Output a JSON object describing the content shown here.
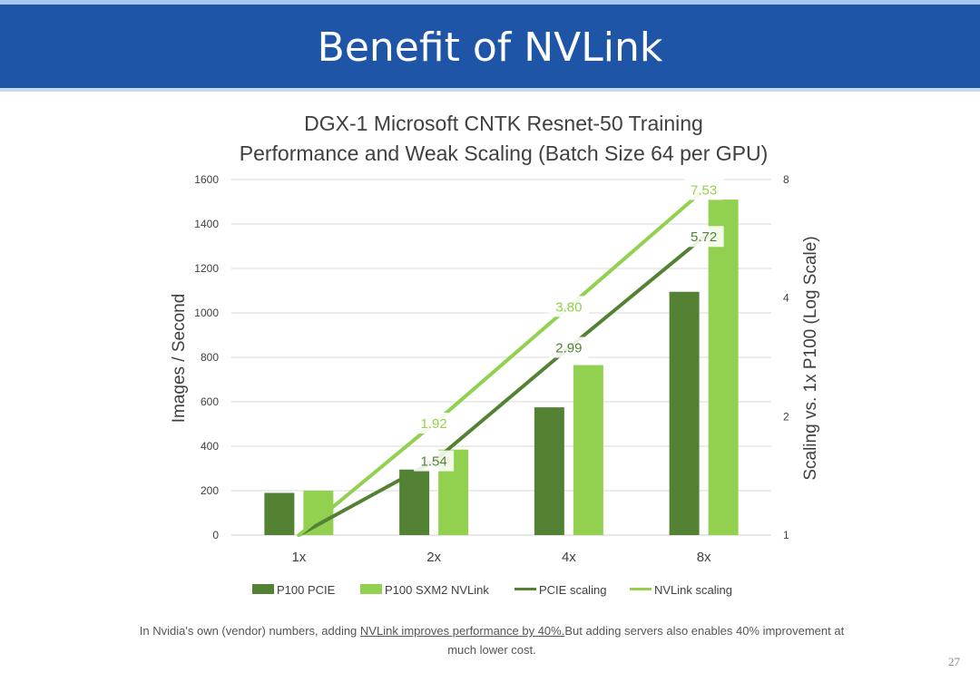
{
  "slide": {
    "title": "Benefit of NVLink",
    "page_number": "27",
    "footnote": {
      "part1": "In Nvidia's own (vendor) numbers, adding ",
      "underlined": "NVLink improves performance by 40%.",
      "part2": "But adding servers also enables 40% improvement at much lower cost."
    }
  },
  "colors": {
    "dark_green": "#548235",
    "light_green": "#92d050",
    "header_blue": "#1f55a7",
    "grid": "#d9d9d9"
  },
  "chart_data": {
    "type": "bar",
    "title_line1": "DGX-1 Microsoft CNTK Resnet-50 Training",
    "title_line2": "Performance and Weak Scaling (Batch Size 64 per GPU)",
    "categories": [
      "1x",
      "2x",
      "4x",
      "8x"
    ],
    "ylabel": "Images / Second",
    "y2label": "Scaling vs. 1x P100 (Log Scale)",
    "ylim": [
      0,
      1600
    ],
    "yticks": [
      0,
      200,
      400,
      600,
      800,
      1000,
      1200,
      1400,
      1600
    ],
    "y2lim": [
      1,
      8
    ],
    "y2ticks": [
      1,
      2,
      4,
      8
    ],
    "y2scale": "log2",
    "series": [
      {
        "name": "P100 PCIE",
        "kind": "bar",
        "color": "#548235",
        "values": [
          190,
          295,
          575,
          1095
        ]
      },
      {
        "name": "P100 SXM2 NVLink",
        "kind": "bar",
        "color": "#92d050",
        "values": [
          200,
          385,
          765,
          1510
        ]
      },
      {
        "name": "PCIE scaling",
        "kind": "line",
        "axis": "right",
        "color": "#548235",
        "values": [
          1,
          1.54,
          2.99,
          5.72
        ],
        "labels": [
          "",
          "1.54",
          "2.99",
          "5.72"
        ]
      },
      {
        "name": "NVLink scaling",
        "kind": "line",
        "axis": "right",
        "color": "#92d050",
        "values": [
          1,
          1.92,
          3.8,
          7.53
        ],
        "labels": [
          "",
          "1.92",
          "3.80",
          "7.53"
        ]
      }
    ],
    "legend_position": "bottom",
    "grid": true
  }
}
